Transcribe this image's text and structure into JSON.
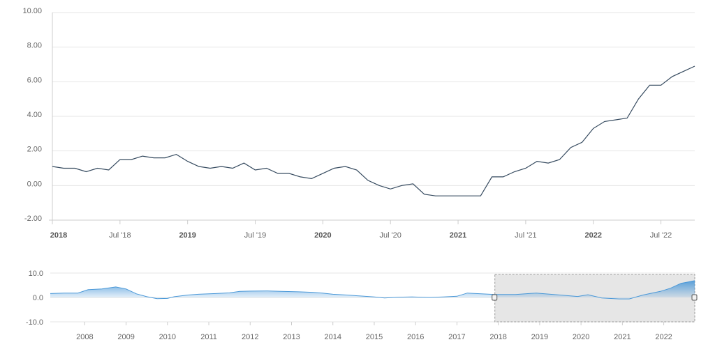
{
  "chart_data": [
    {
      "type": "line",
      "y_ticks": [
        "10.00",
        "8.00",
        "6.00",
        "4.00",
        "2.00",
        "0.00",
        "-2.00"
      ],
      "ylim": [
        -2,
        10
      ],
      "x_ticks": [
        {
          "label": "2018",
          "bold": true
        },
        {
          "label": "Jul '18",
          "bold": false
        },
        {
          "label": "2019",
          "bold": true
        },
        {
          "label": "Jul '19",
          "bold": false
        },
        {
          "label": "2020",
          "bold": true
        },
        {
          "label": "Jul '20",
          "bold": false
        },
        {
          "label": "2021",
          "bold": true
        },
        {
          "label": "Jul '21",
          "bold": false
        },
        {
          "label": "2022",
          "bold": true
        },
        {
          "label": "Jul '22",
          "bold": false
        }
      ],
      "xlim": [
        "2018-01",
        "2022-10"
      ],
      "grid": true,
      "line_color": "#34495e",
      "series": [
        {
          "points": [
            [
              "2018-01",
              1.1
            ],
            [
              "2018-02",
              1.0
            ],
            [
              "2018-03",
              1.0
            ],
            [
              "2018-04",
              0.8
            ],
            [
              "2018-05",
              1.0
            ],
            [
              "2018-06",
              0.9
            ],
            [
              "2018-07",
              1.5
            ],
            [
              "2018-08",
              1.5
            ],
            [
              "2018-09",
              1.7
            ],
            [
              "2018-10",
              1.6
            ],
            [
              "2018-11",
              1.6
            ],
            [
              "2018-12",
              1.8
            ],
            [
              "2019-01",
              1.4
            ],
            [
              "2019-02",
              1.1
            ],
            [
              "2019-03",
              1.0
            ],
            [
              "2019-04",
              1.1
            ],
            [
              "2019-05",
              1.0
            ],
            [
              "2019-06",
              1.3
            ],
            [
              "2019-07",
              0.9
            ],
            [
              "2019-08",
              1.0
            ],
            [
              "2019-09",
              0.7
            ],
            [
              "2019-10",
              0.7
            ],
            [
              "2019-11",
              0.5
            ],
            [
              "2019-12",
              0.4
            ],
            [
              "2020-01",
              0.7
            ],
            [
              "2020-02",
              1.0
            ],
            [
              "2020-03",
              1.1
            ],
            [
              "2020-04",
              0.9
            ],
            [
              "2020-05",
              0.3
            ],
            [
              "2020-06",
              0.0
            ],
            [
              "2020-07",
              -0.2
            ],
            [
              "2020-08",
              0.0
            ],
            [
              "2020-09",
              0.1
            ],
            [
              "2020-10",
              -0.5
            ],
            [
              "2020-11",
              -0.6
            ],
            [
              "2020-12",
              -0.6
            ],
            [
              "2021-01",
              -0.6
            ],
            [
              "2021-02",
              -0.6
            ],
            [
              "2021-03",
              -0.6
            ],
            [
              "2021-04",
              0.5
            ],
            [
              "2021-05",
              0.5
            ],
            [
              "2021-06",
              0.8
            ],
            [
              "2021-07",
              1.0
            ],
            [
              "2021-08",
              1.4
            ],
            [
              "2021-09",
              1.3
            ],
            [
              "2021-10",
              1.5
            ],
            [
              "2021-11",
              2.2
            ],
            [
              "2021-12",
              2.5
            ],
            [
              "2022-01",
              3.3
            ],
            [
              "2022-02",
              3.7
            ],
            [
              "2022-03",
              3.8
            ],
            [
              "2022-04",
              3.9
            ],
            [
              "2022-05",
              5.0
            ],
            [
              "2022-06",
              5.8
            ],
            [
              "2022-07",
              5.8
            ],
            [
              "2022-08",
              6.3
            ],
            [
              "2022-09",
              6.6
            ],
            [
              "2022-10",
              6.9
            ]
          ]
        }
      ]
    },
    {
      "type": "area",
      "y_ticks": [
        "10.0",
        "0.0",
        "-10.0"
      ],
      "ylim": [
        -10,
        10
      ],
      "x_ticks": [
        "2008",
        "2009",
        "2010",
        "2011",
        "2012",
        "2013",
        "2014",
        "2015",
        "2016",
        "2017",
        "2018",
        "2019",
        "2020",
        "2021",
        "2022"
      ],
      "xlim": [
        "2007-03",
        "2022-10"
      ],
      "selected_range": [
        "2017-12",
        "2022-10"
      ],
      "area_color": "#4a98d8",
      "series": [
        {
          "points": [
            [
              "2007-03",
              1.6
            ],
            [
              "2007-07",
              1.8
            ],
            [
              "2007-11",
              1.8
            ],
            [
              "2008-02",
              3.2
            ],
            [
              "2008-06",
              3.5
            ],
            [
              "2008-10",
              4.3
            ],
            [
              "2009-01",
              3.5
            ],
            [
              "2009-04",
              1.5
            ],
            [
              "2009-07",
              0.3
            ],
            [
              "2009-10",
              -0.5
            ],
            [
              "2010-01",
              -0.4
            ],
            [
              "2010-03",
              0.3
            ],
            [
              "2010-07",
              1.0
            ],
            [
              "2010-10",
              1.3
            ],
            [
              "2011-03",
              1.6
            ],
            [
              "2011-07",
              1.9
            ],
            [
              "2011-10",
              2.5
            ],
            [
              "2012-01",
              2.6
            ],
            [
              "2012-06",
              2.7
            ],
            [
              "2012-10",
              2.5
            ],
            [
              "2013-03",
              2.3
            ],
            [
              "2013-07",
              2.1
            ],
            [
              "2013-10",
              1.8
            ],
            [
              "2014-01",
              1.3
            ],
            [
              "2014-05",
              1.0
            ],
            [
              "2014-09",
              0.6
            ],
            [
              "2015-01",
              0.2
            ],
            [
              "2015-04",
              -0.2
            ],
            [
              "2015-08",
              0.1
            ],
            [
              "2015-12",
              0.2
            ],
            [
              "2016-05",
              0.0
            ],
            [
              "2016-09",
              0.2
            ],
            [
              "2017-01",
              0.5
            ],
            [
              "2017-04",
              1.8
            ],
            [
              "2017-08",
              1.5
            ],
            [
              "2017-12",
              1.2
            ],
            [
              "2018-06",
              1.2
            ],
            [
              "2018-12",
              1.8
            ],
            [
              "2019-06",
              1.1
            ],
            [
              "2019-12",
              0.4
            ],
            [
              "2020-03",
              1.1
            ],
            [
              "2020-07",
              -0.2
            ],
            [
              "2020-12",
              -0.6
            ],
            [
              "2021-03",
              -0.6
            ],
            [
              "2021-07",
              1.0
            ],
            [
              "2021-12",
              2.5
            ],
            [
              "2022-03",
              3.8
            ],
            [
              "2022-06",
              5.8
            ],
            [
              "2022-08",
              6.3
            ],
            [
              "2022-10",
              6.9
            ]
          ]
        }
      ]
    }
  ]
}
